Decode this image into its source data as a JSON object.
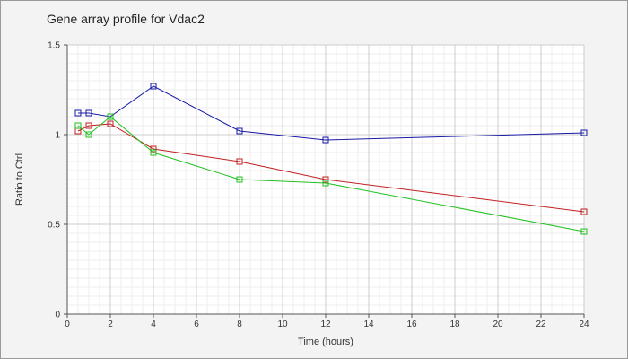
{
  "chart_data": {
    "type": "line",
    "title": "Gene array profile for Vdac2",
    "xlabel": "Time (hours)",
    "ylabel": "Ratio to Ctrl",
    "xlim": [
      0,
      24
    ],
    "ylim": [
      0,
      1.5
    ],
    "x_ticks": [
      0,
      2,
      4,
      6,
      8,
      10,
      12,
      14,
      16,
      18,
      20,
      22,
      24
    ],
    "y_ticks": [
      0,
      0.5,
      1,
      1.5
    ],
    "y_tick_labels": [
      "0",
      "0.5",
      "1",
      "1.5"
    ],
    "grid": true,
    "legend": "none",
    "series": [
      {
        "color": "#1a1aaa",
        "x": [
          0.5,
          1,
          2,
          4,
          8,
          12,
          24
        ],
        "y": [
          1.12,
          1.12,
          1.1,
          1.27,
          1.02,
          0.97,
          1.01
        ]
      },
      {
        "color": "#c02020",
        "x": [
          0.5,
          1,
          2,
          4,
          8,
          12,
          24
        ],
        "y": [
          1.02,
          1.05,
          1.06,
          0.92,
          0.85,
          0.75,
          0.57
        ]
      },
      {
        "color": "#20c020",
        "x": [
          0.5,
          1,
          2,
          4,
          8,
          12,
          24
        ],
        "y": [
          1.05,
          1.0,
          1.1,
          0.9,
          0.75,
          0.73,
          0.46
        ]
      }
    ]
  }
}
